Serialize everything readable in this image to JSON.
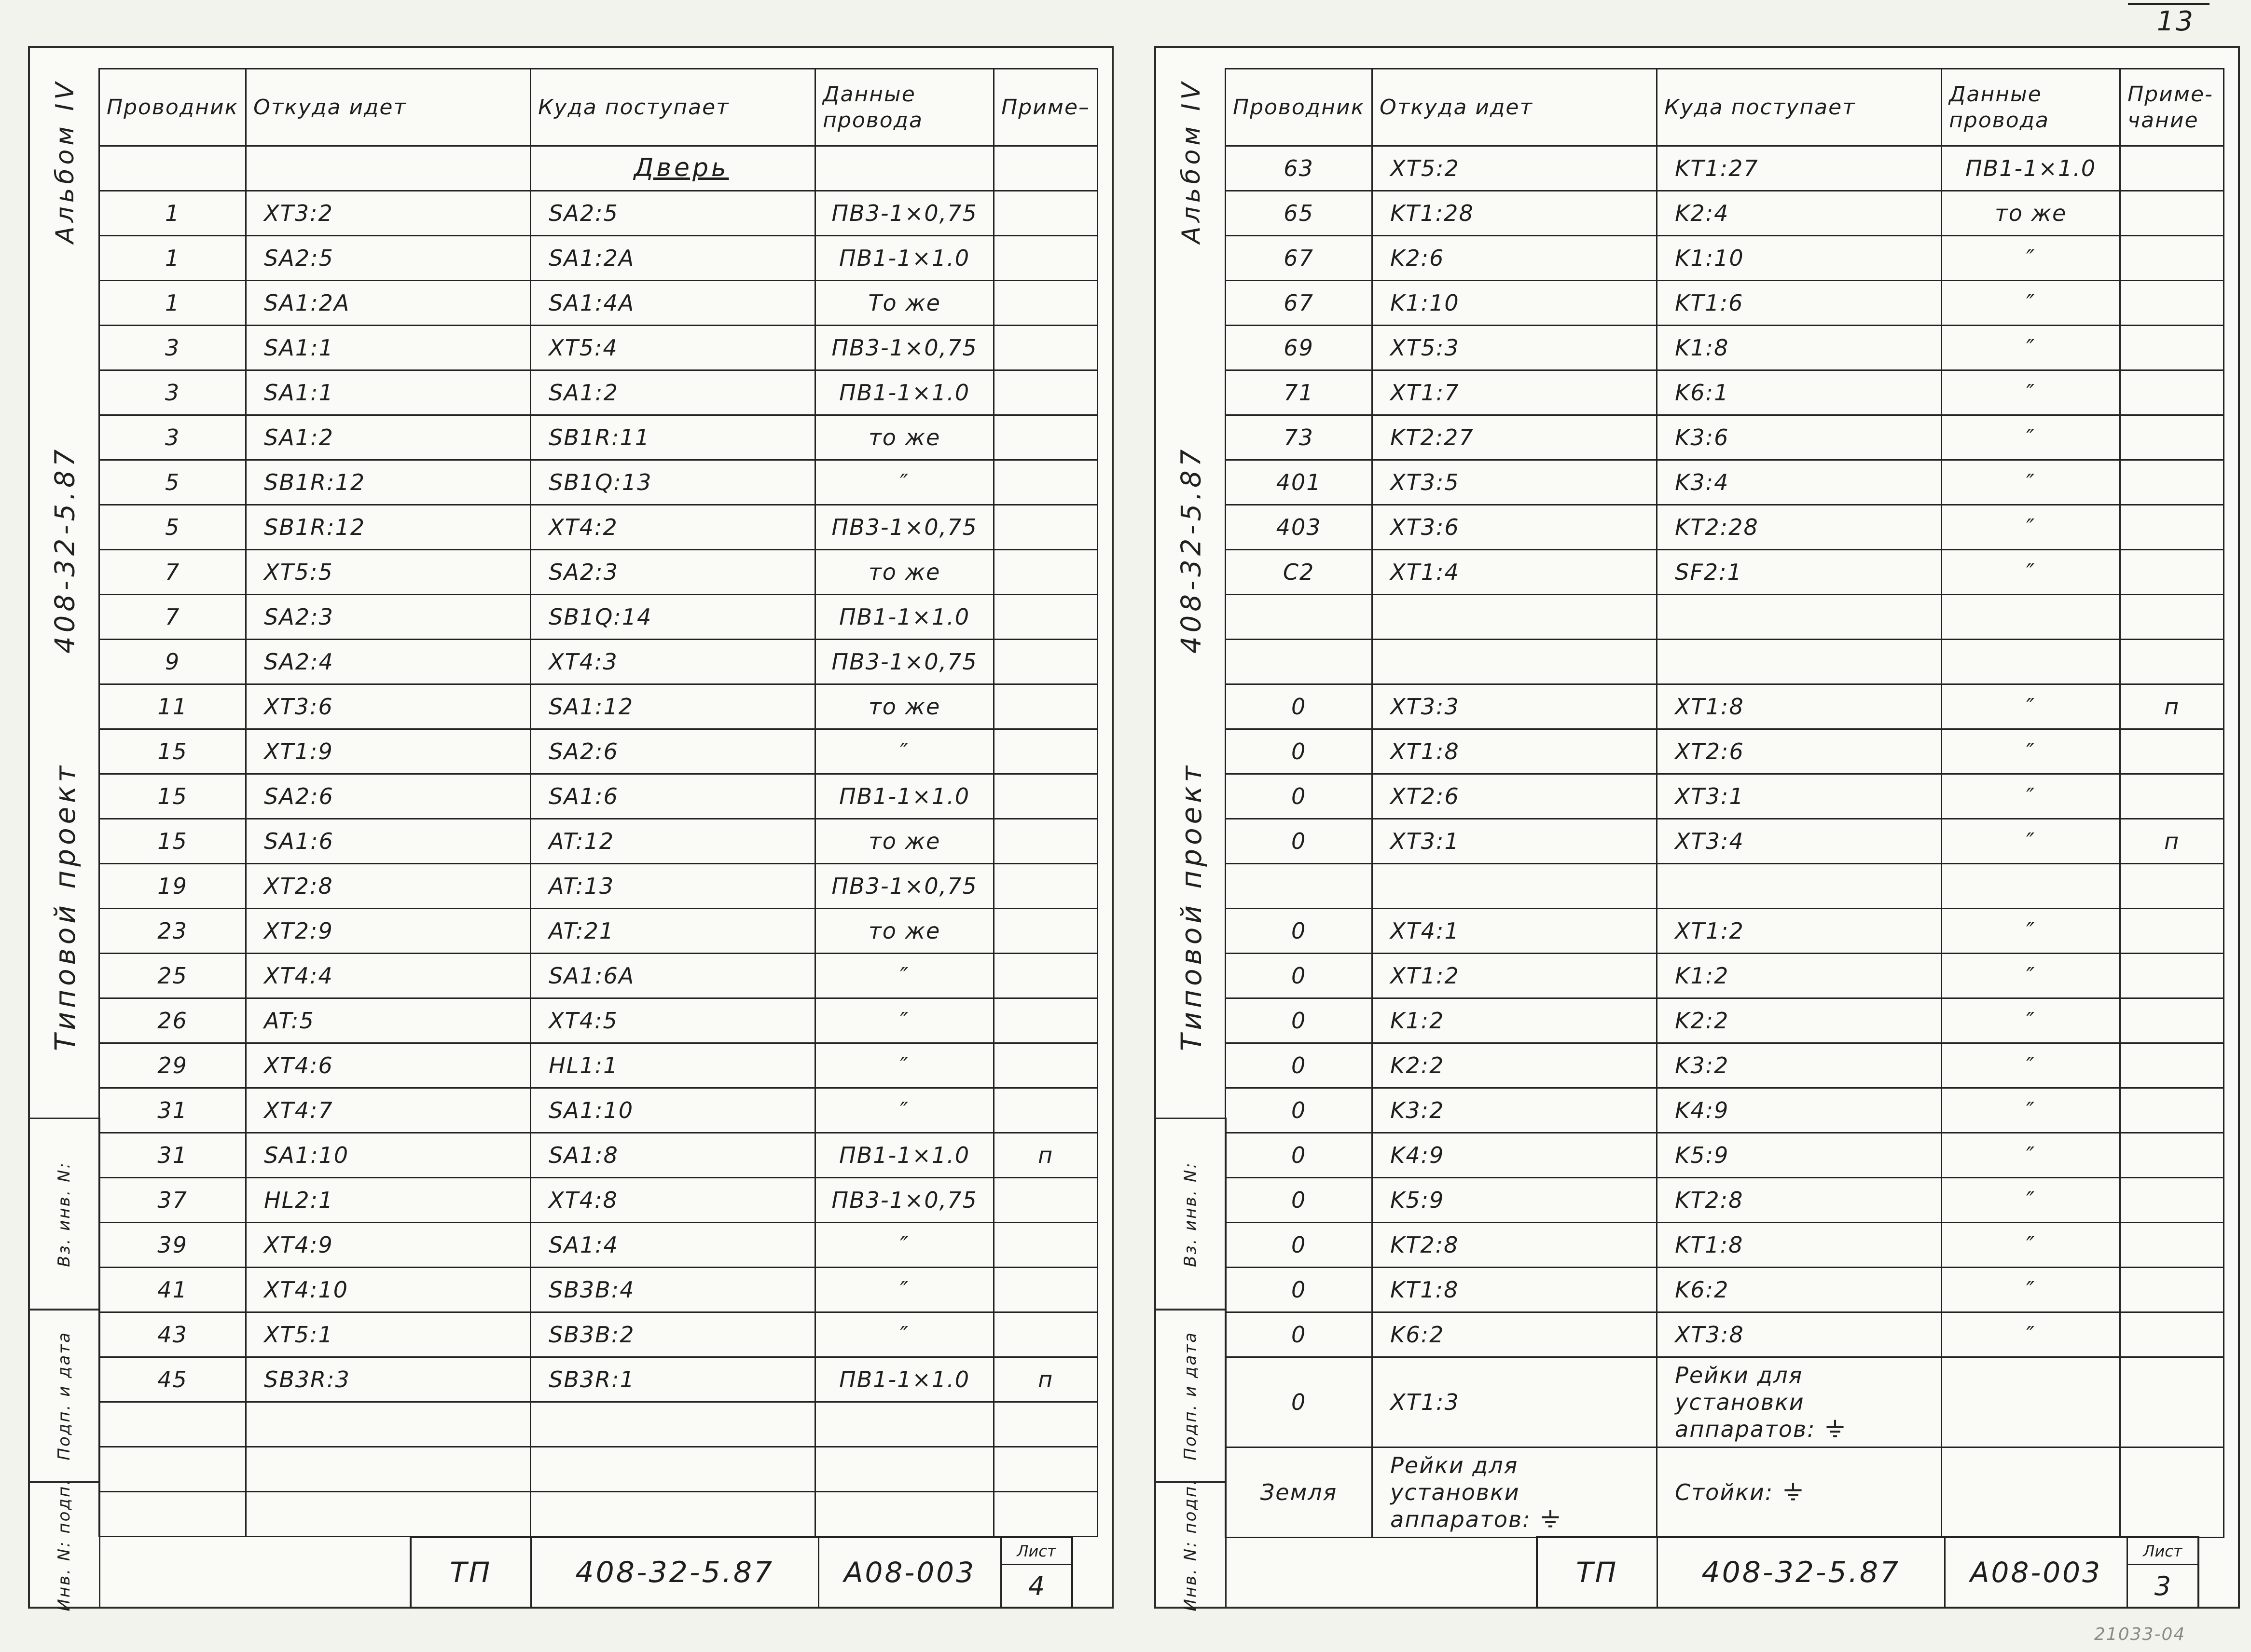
{
  "scan": {
    "page_number": "13",
    "corner_mark": "21033-04",
    "ink_color": "#1e1e1e",
    "paper_color": "#fafaf6"
  },
  "pages": [
    {
      "side": "left",
      "sidebar": {
        "album": "Альбом IV",
        "project_code": "408-32-5.87",
        "project_type": "Типовой проект",
        "boxes": [
          "Вз. инв. N:",
          "Подп. и дата",
          "Инв. N: подп."
        ]
      },
      "table": {
        "headers": [
          "Проводник",
          "Откуда идет",
          "Куда поступает",
          "Данные\nпровода",
          "Приме–"
        ],
        "section_title": "Дверь",
        "rows": [
          {
            "section": "Дверь"
          },
          {
            "c": [
              "1",
              "XT3:2",
              "SA2:5",
              "ПВ3-1×0,75",
              ""
            ]
          },
          {
            "c": [
              "1",
              "SA2:5",
              "SA1:2A",
              "ПВ1-1×1.0",
              ""
            ]
          },
          {
            "c": [
              "1",
              "SA1:2A",
              "SA1:4A",
              "То же",
              ""
            ]
          },
          {
            "c": [
              "3",
              "SA1:1",
              "XT5:4",
              "ПВ3-1×0,75",
              ""
            ]
          },
          {
            "c": [
              "3",
              "SA1:1",
              "SA1:2",
              "ПВ1-1×1.0",
              ""
            ]
          },
          {
            "c": [
              "3",
              "SA1:2",
              "SB1R:11",
              "то же",
              ""
            ]
          },
          {
            "c": [
              "5",
              "SB1R:12",
              "SB1Q:13",
              "″",
              ""
            ]
          },
          {
            "c": [
              "5",
              "SB1R:12",
              "XT4:2",
              "ПВ3-1×0,75",
              ""
            ]
          },
          {
            "c": [
              "7",
              "XT5:5",
              "SA2:3",
              "то же",
              ""
            ]
          },
          {
            "c": [
              "7",
              "SA2:3",
              "SB1Q:14",
              "ПВ1-1×1.0",
              ""
            ]
          },
          {
            "c": [
              "9",
              "SA2:4",
              "XT4:3",
              "ПВ3-1×0,75",
              ""
            ]
          },
          {
            "c": [
              "11",
              "XT3:6",
              "SA1:12",
              "то же",
              ""
            ]
          },
          {
            "c": [
              "15",
              "XT1:9",
              "SA2:6",
              "″",
              ""
            ]
          },
          {
            "c": [
              "15",
              "SA2:6",
              "SA1:6",
              "ПВ1-1×1.0",
              ""
            ]
          },
          {
            "c": [
              "15",
              "SA1:6",
              "AT:12",
              "то же",
              ""
            ]
          },
          {
            "c": [
              "19",
              "XT2:8",
              "AT:13",
              "ПВ3-1×0,75",
              ""
            ]
          },
          {
            "c": [
              "23",
              "XT2:9",
              "AT:21",
              "то же",
              ""
            ]
          },
          {
            "c": [
              "25",
              "XT4:4",
              "SA1:6A",
              "″",
              ""
            ]
          },
          {
            "c": [
              "26",
              "AT:5",
              "XT4:5",
              "″",
              ""
            ]
          },
          {
            "c": [
              "29",
              "XT4:6",
              "HL1:1",
              "″",
              ""
            ]
          },
          {
            "c": [
              "31",
              "XT4:7",
              "SA1:10",
              "″",
              ""
            ]
          },
          {
            "c": [
              "31",
              "SA1:10",
              "SA1:8",
              "ПВ1-1×1.0",
              "п"
            ]
          },
          {
            "c": [
              "37",
              "HL2:1",
              "XT4:8",
              "ПВ3-1×0,75",
              ""
            ]
          },
          {
            "c": [
              "39",
              "XT4:9",
              "SA1:4",
              "″",
              ""
            ]
          },
          {
            "c": [
              "41",
              "XT4:10",
              "SB3B:4",
              "″",
              ""
            ]
          },
          {
            "c": [
              "43",
              "XT5:1",
              "SB3B:2",
              "″",
              ""
            ]
          },
          {
            "c": [
              "45",
              "SB3R:3",
              "SB3R:1",
              "ПВ1-1×1.0",
              "п"
            ]
          },
          {
            "c": [
              "",
              "",
              "",
              "",
              ""
            ]
          },
          {
            "c": [
              "",
              "",
              "",
              "",
              ""
            ]
          },
          {
            "c": [
              "",
              "",
              "",
              "",
              ""
            ]
          }
        ]
      },
      "stamp": {
        "tp": "ТП",
        "code": "408-32-5.87",
        "doc": "А08-003",
        "sheet_label": "Лист",
        "sheet_no": "4"
      }
    },
    {
      "side": "right",
      "sidebar": {
        "album": "Альбом IV",
        "project_code": "408-32-5.87",
        "project_type": "Типовой проект",
        "boxes": [
          "Вз. инв. N:",
          "Подп. и дата",
          "Инв. N: подп."
        ]
      },
      "table": {
        "headers": [
          "Проводник",
          "Откуда идет",
          "Куда поступает",
          "Данные\nпровода",
          "Приме-\nчание"
        ],
        "rows": [
          {
            "c": [
              "63",
              "XT5:2",
              "KT1:27",
              "ПВ1-1×1.0",
              ""
            ]
          },
          {
            "c": [
              "65",
              "KT1:28",
              "K2:4",
              "то же",
              ""
            ]
          },
          {
            "c": [
              "67",
              "K2:6",
              "K1:10",
              "″",
              ""
            ]
          },
          {
            "c": [
              "67",
              "K1:10",
              "KT1:6",
              "″",
              ""
            ]
          },
          {
            "c": [
              "69",
              "XT5:3",
              "K1:8",
              "″",
              ""
            ]
          },
          {
            "c": [
              "71",
              "XT1:7",
              "K6:1",
              "″",
              ""
            ]
          },
          {
            "c": [
              "73",
              "KT2:27",
              "K3:6",
              "″",
              ""
            ]
          },
          {
            "c": [
              "401",
              "XT3:5",
              "K3:4",
              "″",
              ""
            ]
          },
          {
            "c": [
              "403",
              "XT3:6",
              "KT2:28",
              "″",
              ""
            ]
          },
          {
            "c": [
              "C2",
              "XT1:4",
              "SF2:1",
              "″",
              ""
            ]
          },
          {
            "c": [
              "",
              "",
              "",
              "",
              ""
            ]
          },
          {
            "c": [
              "",
              "",
              "",
              "",
              ""
            ]
          },
          {
            "c": [
              "0",
              "XT3:3",
              "XT1:8",
              "″",
              "п"
            ]
          },
          {
            "c": [
              "0",
              "XT1:8",
              "XT2:6",
              "″",
              ""
            ]
          },
          {
            "c": [
              "0",
              "XT2:6",
              "XT3:1",
              "″",
              ""
            ]
          },
          {
            "c": [
              "0",
              "XT3:1",
              "XT3:4",
              "″",
              "п"
            ]
          },
          {
            "c": [
              "",
              "",
              "",
              "",
              ""
            ]
          },
          {
            "c": [
              "0",
              "XT4:1",
              "XT1:2",
              "″",
              ""
            ]
          },
          {
            "c": [
              "0",
              "XT1:2",
              "K1:2",
              "″",
              ""
            ]
          },
          {
            "c": [
              "0",
              "K1:2",
              "K2:2",
              "″",
              ""
            ]
          },
          {
            "c": [
              "0",
              "K2:2",
              "K3:2",
              "″",
              ""
            ]
          },
          {
            "c": [
              "0",
              "K3:2",
              "K4:9",
              "″",
              ""
            ]
          },
          {
            "c": [
              "0",
              "K4:9",
              "K5:9",
              "″",
              ""
            ]
          },
          {
            "c": [
              "0",
              "K5:9",
              "KT2:8",
              "″",
              ""
            ]
          },
          {
            "c": [
              "0",
              "KT2:8",
              "KT1:8",
              "″",
              ""
            ]
          },
          {
            "c": [
              "0",
              "KT1:8",
              "K6:2",
              "″",
              ""
            ]
          },
          {
            "c": [
              "0",
              "K6:2",
              "XT3:8",
              "″",
              ""
            ]
          },
          {
            "c": [
              "0",
              "XT1:3",
              "Рейки для установки\nаппаратов: ⏚",
              "",
              ""
            ],
            "tall": true
          },
          {
            "c": [
              "Земля",
              "Рейки для установки\nаппаратов: ⏚",
              "Стойки: ⏚",
              "",
              ""
            ],
            "tall": true
          }
        ]
      },
      "stamp": {
        "tp": "ТП",
        "code": "408-32-5.87",
        "doc": "А08-003",
        "sheet_label": "Лист",
        "sheet_no": "3"
      }
    }
  ]
}
